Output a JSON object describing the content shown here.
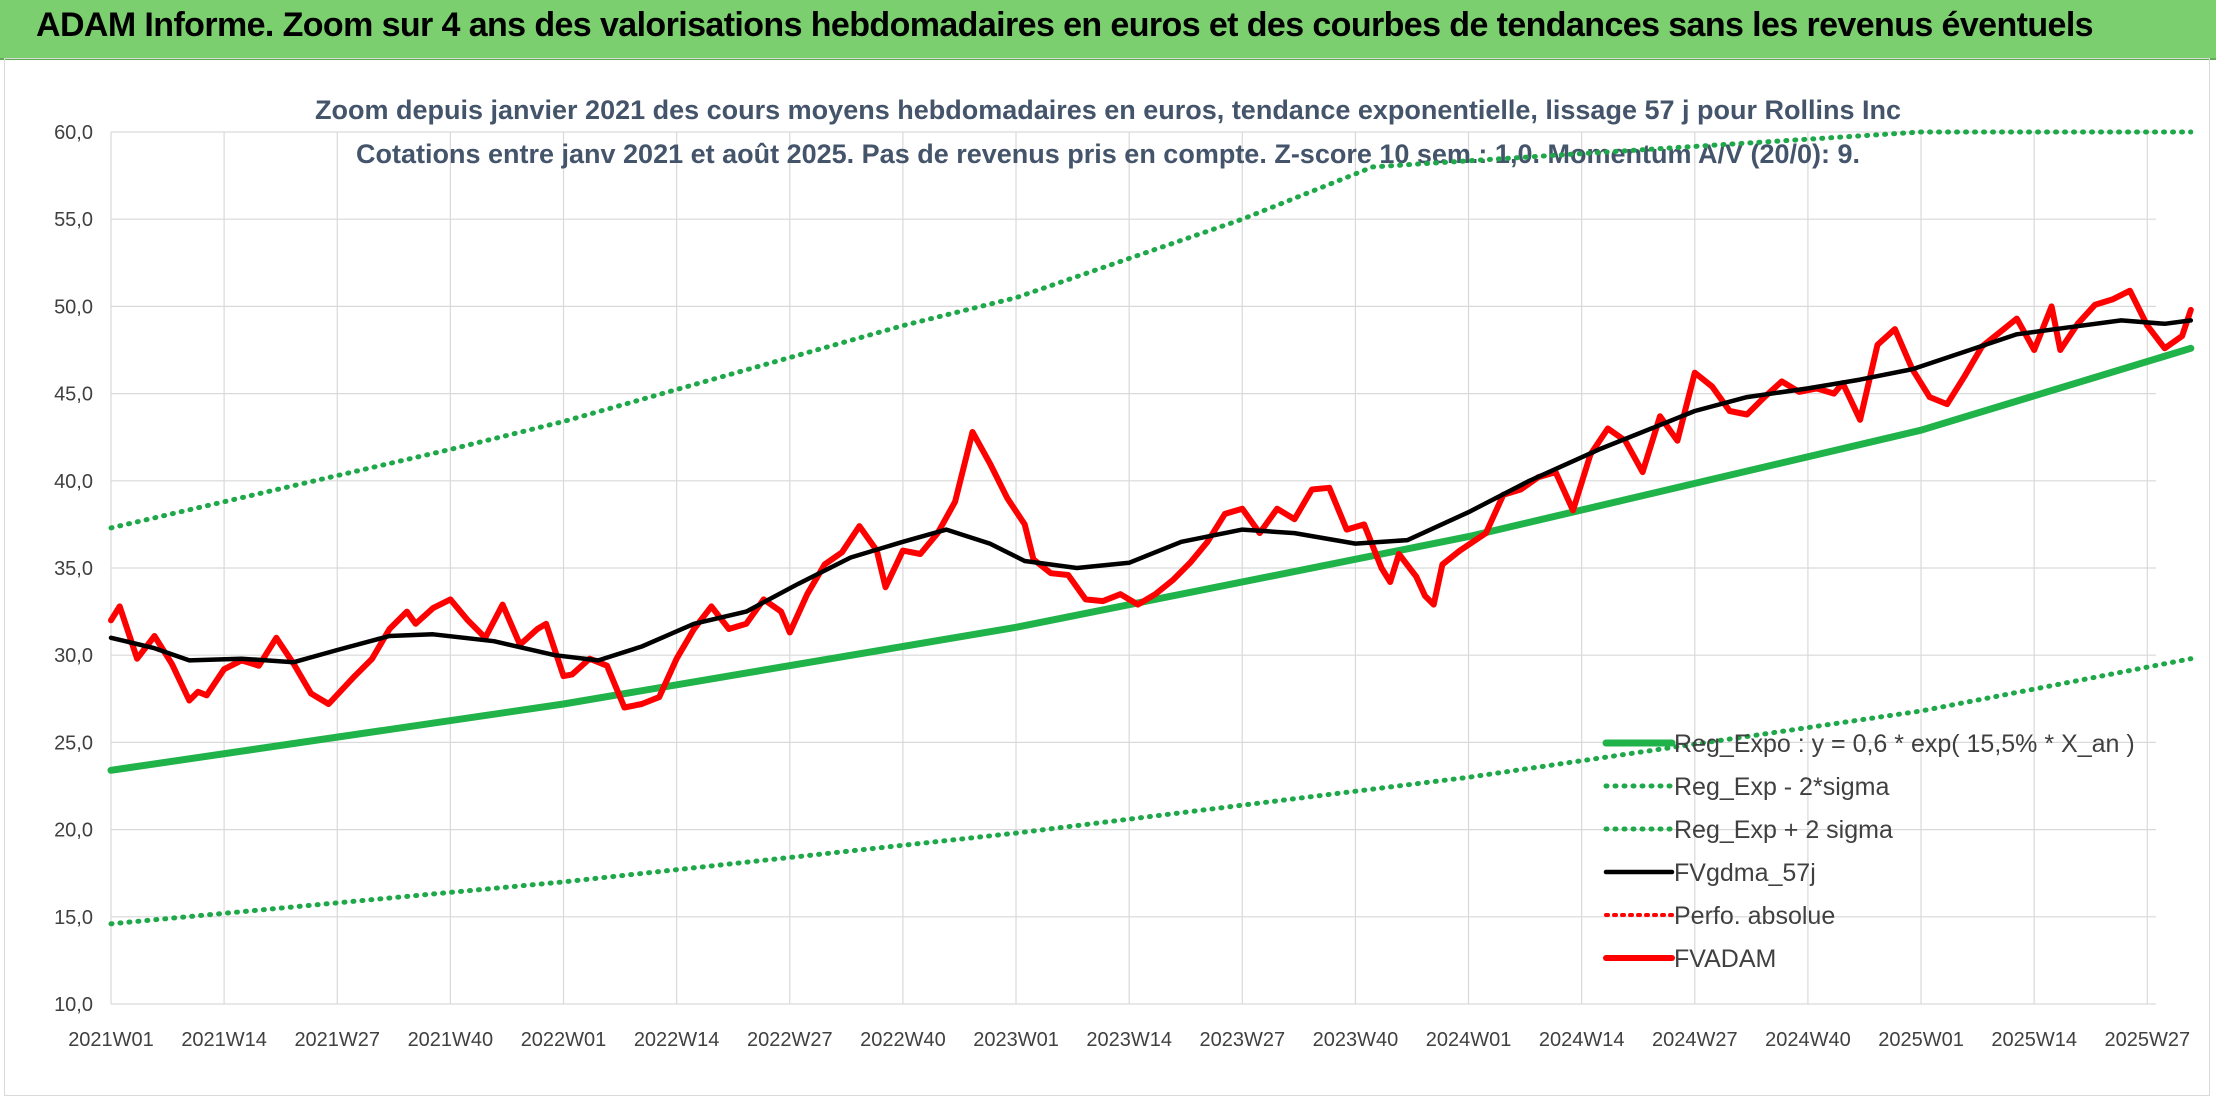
{
  "page": {
    "banner_title": "ADAM Informe. Zoom sur 4 ans des valorisations hebdomadaires en euros et des courbes de tendances sans les revenus éventuels"
  },
  "colors": {
    "banner_bg": "#7ccf6e",
    "reg_expo": "#1fb34a",
    "sigma_lines": "#1fa84a",
    "fvgdma": "#000000",
    "perfo": "#ff0000",
    "fvadam": "#ff0000",
    "grid": "#d9d9d9"
  },
  "chart_data": {
    "type": "line",
    "title": "Zoom depuis janvier 2021 des cours moyens hebdomadaires en euros, tendance exponentielle, lissage 57 j pour Rollins Inc",
    "subtitle": "Cotations entre janv 2021 et août 2025. Pas de revenus pris en compte. Z-score 10 sem.: 1,0. Momentum A/V (20/0): 9.",
    "xlabel": "",
    "ylabel": "",
    "ylim": [
      10,
      60
    ],
    "yticks": [
      "10,0",
      "15,0",
      "20,0",
      "25,0",
      "30,0",
      "35,0",
      "40,0",
      "45,0",
      "50,0",
      "55,0",
      "60,0"
    ],
    "x_start_week": "2021W01",
    "x_count": 236,
    "x_tick_labels": [
      "2021W01",
      "2021W14",
      "2021W27",
      "2021W40",
      "2022W01",
      "2022W14",
      "2022W27",
      "2022W40",
      "2023W01",
      "2023W14",
      "2023W27",
      "2023W40",
      "2024W01",
      "2024W14",
      "2024W27",
      "2024W40",
      "2025W01",
      "2025W14",
      "2025W27"
    ],
    "grid": true,
    "legend_position": "bottom-right",
    "series": [
      {
        "name": "Reg_Expo : y = 0,6 * exp( 15,5% *  X_an )",
        "style": "solid-thick",
        "points": [
          [
            "2021W01",
            23.4
          ],
          [
            "2022W01",
            27.2
          ],
          [
            "2023W01",
            31.6
          ],
          [
            "2024W01",
            36.8
          ],
          [
            "2025W01",
            42.9
          ],
          [
            "2025W32",
            47.6
          ]
        ]
      },
      {
        "name": "Reg_Exp - 2*sigma",
        "style": "dotted",
        "points": [
          [
            "2021W01",
            14.6
          ],
          [
            "2022W01",
            17.0
          ],
          [
            "2023W01",
            19.8
          ],
          [
            "2024W01",
            23.0
          ],
          [
            "2025W01",
            26.8
          ],
          [
            "2025W32",
            29.8
          ]
        ]
      },
      {
        "name": "Reg_Exp + 2 sigma",
        "style": "dotted",
        "points": [
          [
            "2021W01",
            37.3
          ],
          [
            "2021W40",
            41.8
          ],
          [
            "2022W01",
            43.4
          ],
          [
            "2022W40",
            48.9
          ],
          [
            "2023W01",
            50.5
          ],
          [
            "2023W27",
            55.0
          ],
          [
            "2023W40",
            57.6
          ],
          [
            "2023W42",
            58.0
          ],
          [
            "2025W01",
            60.0
          ],
          [
            "2025W32",
            60.0
          ]
        ]
      },
      {
        "name": "FVgdma_57j",
        "style": "solid",
        "points": [
          [
            "2021W01",
            31.0
          ],
          [
            "2021W06",
            30.4
          ],
          [
            "2021W10",
            29.7
          ],
          [
            "2021W16",
            29.8
          ],
          [
            "2021W22",
            29.6
          ],
          [
            "2021W27",
            30.3
          ],
          [
            "2021W33",
            31.1
          ],
          [
            "2021W38",
            31.2
          ],
          [
            "2021W45",
            30.8
          ],
          [
            "2021W52",
            30.0
          ],
          [
            "2022W05",
            29.7
          ],
          [
            "2022W10",
            30.5
          ],
          [
            "2022W16",
            31.8
          ],
          [
            "2022W22",
            32.5
          ],
          [
            "2022W28",
            34.1
          ],
          [
            "2022W34",
            35.6
          ],
          [
            "2022W40",
            36.5
          ],
          [
            "2022W45",
            37.2
          ],
          [
            "2022W50",
            36.4
          ],
          [
            "2023W02",
            35.4
          ],
          [
            "2023W08",
            35.0
          ],
          [
            "2023W14",
            35.3
          ],
          [
            "2023W20",
            36.5
          ],
          [
            "2023W27",
            37.2
          ],
          [
            "2023W33",
            37.0
          ],
          [
            "2023W40",
            36.4
          ],
          [
            "2023W46",
            36.6
          ],
          [
            "2024W01",
            38.2
          ],
          [
            "2024W08",
            40.0
          ],
          [
            "2024W16",
            41.8
          ],
          [
            "2024W22",
            43.0
          ],
          [
            "2024W27",
            44.0
          ],
          [
            "2024W33",
            44.8
          ],
          [
            "2024W40",
            45.3
          ],
          [
            "2024W46",
            45.8
          ],
          [
            "2024W52",
            46.4
          ],
          [
            "2025W06",
            47.4
          ],
          [
            "2025W12",
            48.4
          ],
          [
            "2025W18",
            48.8
          ],
          [
            "2025W24",
            49.2
          ],
          [
            "2025W29",
            49.0
          ],
          [
            "2025W32",
            49.2
          ]
        ]
      },
      {
        "name": "Perfo. absolue",
        "style": "dotted",
        "points": []
      },
      {
        "name": "FVADAM",
        "style": "solid-thick",
        "points": [
          [
            "2021W01",
            32.0
          ],
          [
            "2021W02",
            32.8
          ],
          [
            "2021W04",
            29.8
          ],
          [
            "2021W06",
            31.1
          ],
          [
            "2021W08",
            29.5
          ],
          [
            "2021W10",
            27.4
          ],
          [
            "2021W11",
            27.9
          ],
          [
            "2021W12",
            27.7
          ],
          [
            "2021W14",
            29.2
          ],
          [
            "2021W16",
            29.7
          ],
          [
            "2021W18",
            29.4
          ],
          [
            "2021W20",
            31.0
          ],
          [
            "2021W22",
            29.5
          ],
          [
            "2021W24",
            27.8
          ],
          [
            "2021W26",
            27.2
          ],
          [
            "2021W29",
            28.8
          ],
          [
            "2021W31",
            29.8
          ],
          [
            "2021W33",
            31.5
          ],
          [
            "2021W35",
            32.5
          ],
          [
            "2021W36",
            31.8
          ],
          [
            "2021W38",
            32.7
          ],
          [
            "2021W40",
            33.2
          ],
          [
            "2021W42",
            32.0
          ],
          [
            "2021W44",
            31.0
          ],
          [
            "2021W46",
            32.9
          ],
          [
            "2021W48",
            30.6
          ],
          [
            "2021W50",
            31.5
          ],
          [
            "2021W51",
            31.8
          ],
          [
            "2021W53",
            28.8
          ],
          [
            "2022W02",
            28.9
          ],
          [
            "2022W04",
            29.8
          ],
          [
            "2022W06",
            29.4
          ],
          [
            "2022W08",
            27.0
          ],
          [
            "2022W10",
            27.2
          ],
          [
            "2022W12",
            27.6
          ],
          [
            "2022W14",
            29.8
          ],
          [
            "2022W16",
            31.5
          ],
          [
            "2022W18",
            32.8
          ],
          [
            "2022W20",
            31.5
          ],
          [
            "2022W22",
            31.8
          ],
          [
            "2022W24",
            33.2
          ],
          [
            "2022W26",
            32.5
          ],
          [
            "2022W27",
            31.3
          ],
          [
            "2022W29",
            33.5
          ],
          [
            "2022W31",
            35.2
          ],
          [
            "2022W33",
            35.9
          ],
          [
            "2022W35",
            37.4
          ],
          [
            "2022W37",
            36.0
          ],
          [
            "2022W38",
            33.9
          ],
          [
            "2022W40",
            36.0
          ],
          [
            "2022W42",
            35.8
          ],
          [
            "2022W44",
            37.0
          ],
          [
            "2022W46",
            38.8
          ],
          [
            "2022W48",
            42.8
          ],
          [
            "2022W50",
            41.0
          ],
          [
            "2022W52",
            39.0
          ],
          [
            "2023W02",
            37.5
          ],
          [
            "2023W03",
            35.5
          ],
          [
            "2023W05",
            34.7
          ],
          [
            "2023W07",
            34.6
          ],
          [
            "2023W09",
            33.2
          ],
          [
            "2023W11",
            33.1
          ],
          [
            "2023W13",
            33.5
          ],
          [
            "2023W15",
            32.9
          ],
          [
            "2023W17",
            33.5
          ],
          [
            "2023W19",
            34.3
          ],
          [
            "2023W21",
            35.3
          ],
          [
            "2023W23",
            36.5
          ],
          [
            "2023W25",
            38.1
          ],
          [
            "2023W27",
            38.4
          ],
          [
            "2023W29",
            37.0
          ],
          [
            "2023W31",
            38.4
          ],
          [
            "2023W33",
            37.8
          ],
          [
            "2023W35",
            39.5
          ],
          [
            "2023W37",
            39.6
          ],
          [
            "2023W39",
            37.2
          ],
          [
            "2023W41",
            37.5
          ],
          [
            "2023W43",
            35.0
          ],
          [
            "2023W44",
            34.2
          ],
          [
            "2023W45",
            35.8
          ],
          [
            "2023W47",
            34.5
          ],
          [
            "2023W48",
            33.4
          ],
          [
            "2023W49",
            32.9
          ],
          [
            "2023W50",
            35.2
          ],
          [
            "2023W52",
            36.0
          ],
          [
            "2024W03",
            37.0
          ],
          [
            "2024W05",
            39.2
          ],
          [
            "2024W07",
            39.5
          ],
          [
            "2024W09",
            40.2
          ],
          [
            "2024W11",
            40.5
          ],
          [
            "2024W13",
            38.3
          ],
          [
            "2024W15",
            41.5
          ],
          [
            "2024W17",
            43.0
          ],
          [
            "2024W19",
            42.3
          ],
          [
            "2024W21",
            40.5
          ],
          [
            "2024W23",
            43.7
          ],
          [
            "2024W25",
            42.3
          ],
          [
            "2024W27",
            46.2
          ],
          [
            "2024W29",
            45.4
          ],
          [
            "2024W31",
            44.0
          ],
          [
            "2024W33",
            43.8
          ],
          [
            "2024W35",
            44.8
          ],
          [
            "2024W37",
            45.7
          ],
          [
            "2024W39",
            45.1
          ],
          [
            "2024W41",
            45.3
          ],
          [
            "2024W43",
            45.0
          ],
          [
            "2024W44",
            45.6
          ],
          [
            "2024W46",
            43.5
          ],
          [
            "2024W48",
            47.8
          ],
          [
            "2024W50",
            48.7
          ],
          [
            "2024W52",
            46.4
          ],
          [
            "2025W02",
            44.8
          ],
          [
            "2025W04",
            44.4
          ],
          [
            "2025W06",
            46.0
          ],
          [
            "2025W08",
            47.7
          ],
          [
            "2025W10",
            48.5
          ],
          [
            "2025W12",
            49.3
          ],
          [
            "2025W14",
            47.5
          ],
          [
            "2025W16",
            50.0
          ],
          [
            "2025W17",
            47.5
          ],
          [
            "2025W19",
            49.0
          ],
          [
            "2025W21",
            50.1
          ],
          [
            "2025W23",
            50.4
          ],
          [
            "2025W25",
            50.9
          ],
          [
            "2025W27",
            48.9
          ],
          [
            "2025W29",
            47.6
          ],
          [
            "2025W31",
            48.3
          ],
          [
            "2025W32",
            49.8
          ]
        ]
      }
    ]
  }
}
